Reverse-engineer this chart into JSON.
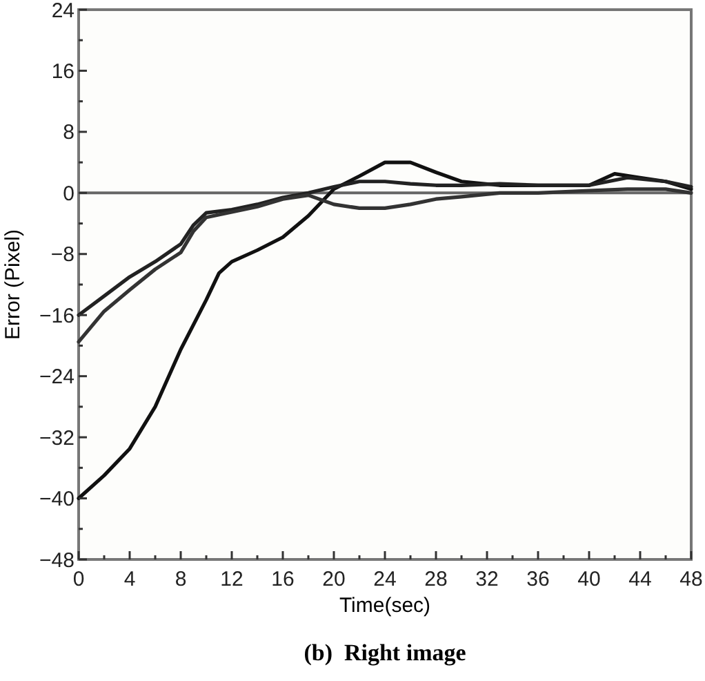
{
  "chart_data": {
    "type": "line",
    "title": "(b)  Right image",
    "xlabel": "Time(sec)",
    "ylabel": "Error (Pixel)",
    "xlim": [
      0,
      48
    ],
    "ylim": [
      -48,
      24
    ],
    "xticks": [
      0,
      {
        "value": 2,
        "label": null
      },
      4,
      {
        "value": 6,
        "label": null
      },
      8,
      {
        "value": 10,
        "label": null
      },
      12,
      {
        "value": 14,
        "label": null
      },
      16,
      {
        "value": 18,
        "label": null
      },
      20,
      {
        "value": 22,
        "label": null
      },
      24,
      {
        "value": 26,
        "label": null
      },
      28,
      {
        "value": 30,
        "label": null
      },
      32,
      {
        "value": 34,
        "label": null
      },
      36,
      {
        "value": 38,
        "label": null
      },
      40,
      {
        "value": 42,
        "label": null
      },
      44,
      {
        "value": 46,
        "label": null
      },
      48
    ],
    "yticks": [
      -48,
      {
        "value": -44,
        "label": null
      },
      -40,
      {
        "value": -36,
        "label": null
      },
      -32,
      {
        "value": -28,
        "label": null
      },
      -24,
      {
        "value": -20,
        "label": null
      },
      -16,
      {
        "value": -12,
        "label": null
      },
      -8,
      {
        "value": -4,
        "label": null
      },
      0,
      {
        "value": 4,
        "label": null
      },
      8,
      {
        "value": 12,
        "label": null
      },
      16,
      {
        "value": 20,
        "label": null
      },
      24
    ],
    "grid": false,
    "marker": "none",
    "line_style": "solid",
    "ref_lines": [
      {
        "axis": "y",
        "value": 0,
        "color": "#666666"
      }
    ],
    "series": [
      {
        "color": "#111111",
        "x": [
          0,
          2,
          4,
          6,
          8,
          10,
          11,
          12,
          14,
          16,
          18,
          20,
          22,
          24,
          26,
          28,
          30,
          33,
          36,
          40,
          42,
          44,
          46,
          48
        ],
        "values": [
          -40,
          -37,
          -33.5,
          -28,
          -20.5,
          -14,
          -10.5,
          -9,
          -7.5,
          -5.8,
          -3,
          0.5,
          2.2,
          4,
          4,
          2.7,
          1.5,
          1,
          1,
          1,
          2.5,
          2,
          1.5,
          0.5
        ]
      },
      {
        "color": "#222222",
        "x": [
          0,
          2,
          4,
          6,
          8,
          9,
          10,
          12,
          14,
          16,
          18,
          20,
          22,
          24,
          26,
          28,
          30,
          33,
          36,
          40,
          43,
          46,
          48
        ],
        "values": [
          -16,
          -13.5,
          -11,
          -9,
          -6.7,
          -4.2,
          -2.6,
          -2.2,
          -1.5,
          -0.6,
          0,
          0.8,
          1.5,
          1.5,
          1.2,
          1,
          1,
          1.2,
          1,
          1,
          2,
          1.5,
          0.8
        ]
      },
      {
        "color": "#333333",
        "x": [
          0,
          2,
          4,
          6,
          8,
          9,
          10,
          12,
          14,
          16,
          18,
          20,
          22,
          24,
          26,
          28,
          30,
          33,
          36,
          40,
          43,
          46,
          48
        ],
        "values": [
          -19.5,
          -15.5,
          -12.7,
          -10,
          -7.8,
          -5,
          -3.2,
          -2.5,
          -1.8,
          -0.8,
          -0.3,
          -1.5,
          -2,
          -2,
          -1.5,
          -0.8,
          -0.5,
          0,
          0,
          0.3,
          0.5,
          0.5,
          0
        ]
      }
    ]
  }
}
